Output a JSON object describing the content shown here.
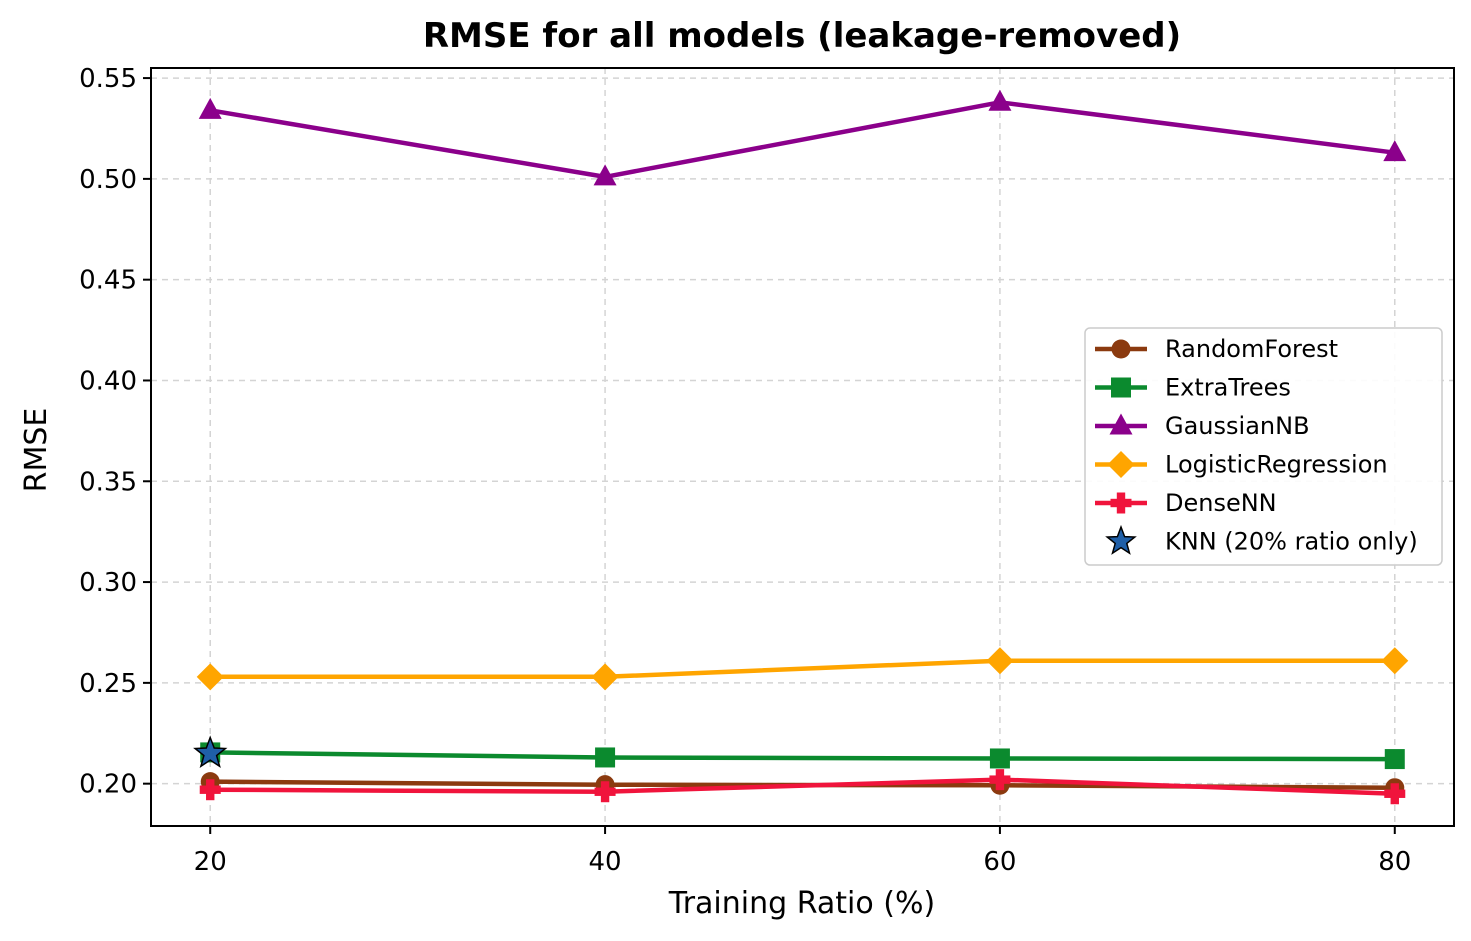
{
  "chart_data": {
    "type": "line",
    "title": "RMSE for all models (leakage-removed)",
    "xlabel": "Training Ratio (%)",
    "ylabel": "RMSE",
    "x": [
      20,
      40,
      60,
      80
    ],
    "xticks": [
      "20",
      "40",
      "60",
      "80"
    ],
    "xlim": [
      17,
      83
    ],
    "ylim": [
      0.179,
      0.555
    ],
    "yticks": [
      "0.20",
      "0.25",
      "0.30",
      "0.35",
      "0.40",
      "0.45",
      "0.50",
      "0.55"
    ],
    "ytick_values": [
      0.2,
      0.25,
      0.3,
      0.35,
      0.4,
      0.45,
      0.5,
      0.55
    ],
    "grid": true,
    "legend_position": "center-right",
    "series": [
      {
        "name": "RandomForest",
        "values": [
          0.201,
          0.1995,
          0.1992,
          0.198
        ],
        "color": "#8B3A0F",
        "marker": "circle"
      },
      {
        "name": "ExtraTrees",
        "values": [
          0.2155,
          0.213,
          0.2125,
          0.2122
        ],
        "color": "#0B8A2E",
        "marker": "square"
      },
      {
        "name": "GaussianNB",
        "values": [
          0.534,
          0.501,
          0.538,
          0.513
        ],
        "color": "#8B008B",
        "marker": "triangle"
      },
      {
        "name": "LogisticRegression",
        "values": [
          0.253,
          0.253,
          0.261,
          0.261
        ],
        "color": "#FFA500",
        "marker": "diamond"
      },
      {
        "name": "DenseNN",
        "values": [
          0.197,
          0.196,
          0.202,
          0.195
        ],
        "color": "#F0143C",
        "marker": "plus"
      }
    ],
    "points": [
      {
        "name": "KNN (20% ratio only)",
        "x": 20,
        "y": 0.215,
        "color": "#1F5FA8",
        "marker": "star"
      }
    ]
  }
}
